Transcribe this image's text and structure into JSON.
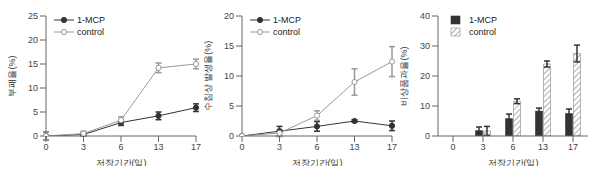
{
  "chart_data": [
    {
      "type": "line",
      "y_label": "부패율(%)",
      "x_label": "저장기간(일)",
      "categories": [
        "0",
        "3",
        "6",
        "13",
        "17"
      ],
      "ylim": [
        0,
        25
      ],
      "yticks": [
        0,
        5,
        10,
        15,
        20,
        25
      ],
      "grid": false,
      "legend": "upper left",
      "series": [
        {
          "name": "1-MCP",
          "color": "#333333",
          "marker": "circle",
          "values": [
            0,
            0.3,
            2.8,
            4.2,
            5.9
          ],
          "errors": [
            0.8,
            0.3,
            0.6,
            0.8,
            0.8
          ]
        },
        {
          "name": "control",
          "color": "#999999",
          "marker": "circle_open",
          "values": [
            0,
            0.5,
            3.3,
            14.2,
            15.0
          ],
          "errors": [
            0.8,
            0.5,
            0.7,
            1.0,
            1.0
          ]
        }
      ]
    },
    {
      "type": "line",
      "y_label": "수침상 발생율(%)",
      "x_label": "저장기간(일)",
      "categories": [
        "0",
        "3",
        "6",
        "13",
        "17"
      ],
      "ylim": [
        0,
        20
      ],
      "yticks": [
        0,
        5,
        10,
        15,
        20
      ],
      "grid": false,
      "legend": "upper left",
      "series": [
        {
          "name": "1-MCP",
          "color": "#333333",
          "marker": "circle",
          "values": [
            0,
            0.8,
            1.6,
            2.5,
            1.7
          ],
          "errors": [
            0,
            0.8,
            0.8,
            0.2,
            0.8
          ]
        },
        {
          "name": "control",
          "color": "#999999",
          "marker": "circle_open",
          "values": [
            0,
            0.5,
            3.4,
            9.0,
            12.4
          ],
          "errors": [
            0,
            0.6,
            0.8,
            2.2,
            2.5
          ]
        }
      ]
    },
    {
      "type": "bar",
      "y_label": "비상품과율(%)",
      "x_label": "저장기간(일)",
      "categories": [
        "0",
        "3",
        "6",
        "13",
        "17"
      ],
      "ylim": [
        0,
        40
      ],
      "yticks": [
        0,
        10,
        20,
        30,
        40
      ],
      "grid": false,
      "legend": "upper left",
      "series": [
        {
          "name": "1-MCP",
          "color": "#333333",
          "values": [
            0,
            1.8,
            5.8,
            8.3,
            7.5
          ],
          "errors": [
            0,
            1.2,
            1.5,
            1.0,
            1.5
          ]
        },
        {
          "name": "control",
          "color": "#888888",
          "values": [
            0,
            1.7,
            11.6,
            24.0,
            27.5
          ],
          "errors": [
            0,
            1.5,
            0.8,
            1.0,
            2.8
          ]
        }
      ]
    }
  ]
}
